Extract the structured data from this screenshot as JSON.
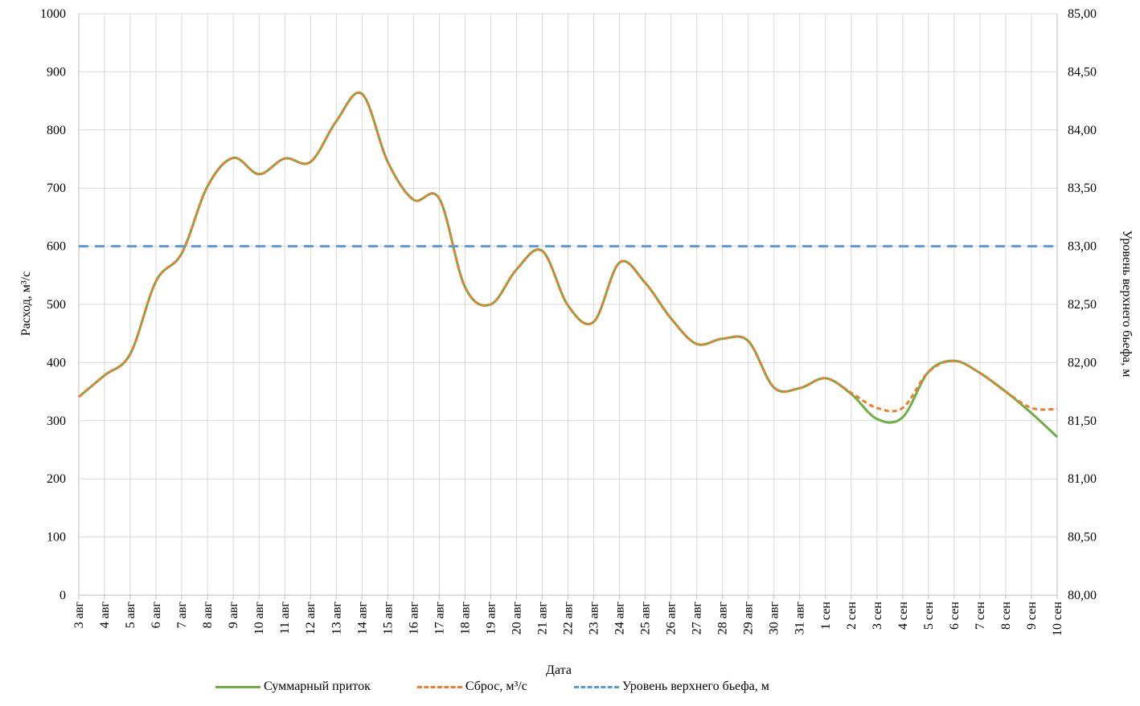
{
  "chart_data": {
    "type": "line",
    "xlabel": "Дата",
    "ylabel_left": "Расход, м³/с",
    "ylabel_right": "Уровень верхнего бьефа, м",
    "ylim_left": [
      0,
      1000
    ],
    "ylim_right": [
      80.0,
      85.0
    ],
    "yticks_left": [
      "0",
      "100",
      "200",
      "300",
      "400",
      "500",
      "600",
      "700",
      "800",
      "900",
      "1000"
    ],
    "yticks_right": [
      "80,00",
      "80,50",
      "81,00",
      "81,50",
      "82,00",
      "82,50",
      "83,00",
      "83,50",
      "84,00",
      "84,50",
      "85,00"
    ],
    "categories": [
      "3 авг",
      "4 авг",
      "5 авг",
      "6 авг",
      "7 авг",
      "8 авг",
      "9 авг",
      "10 авг",
      "11 авг",
      "12 авг",
      "13 авг",
      "14 авг",
      "15 авг",
      "16 авг",
      "17 авг",
      "18 авг",
      "19 авг",
      "20 авг",
      "21 авг",
      "22 авг",
      "23 авг",
      "24 авг",
      "25 авг",
      "26 авг",
      "27 авг",
      "28 авг",
      "29 авг",
      "30 авг",
      "31 авг",
      "1 сен",
      "2 сен",
      "3 сен",
      "4 сен",
      "5 сен",
      "6 сен",
      "7 сен",
      "8 сен",
      "9 сен",
      "10 сен"
    ],
    "grid": true,
    "legend_position": "bottom",
    "series": [
      {
        "name": "Суммарный приток",
        "axis": "left",
        "color": "#70ad47",
        "style": "solid",
        "values": [
          341,
          378,
          415,
          540,
          588,
          703,
          752,
          724,
          751,
          745,
          815,
          862,
          745,
          680,
          682,
          530,
          500,
          560,
          592,
          498,
          470,
          572,
          537,
          476,
          432,
          441,
          437,
          357,
          356,
          373,
          346,
          303,
          306,
          384,
          403,
          382,
          350,
          313,
          272
        ]
      },
      {
        "name": "Сброс, м³/с",
        "axis": "left",
        "color": "#ed7d31",
        "style": "dashed",
        "values": [
          341,
          378,
          415,
          540,
          588,
          703,
          752,
          724,
          751,
          745,
          815,
          862,
          745,
          680,
          682,
          530,
          500,
          560,
          592,
          498,
          470,
          572,
          537,
          476,
          432,
          441,
          437,
          357,
          356,
          373,
          348,
          322,
          322,
          384,
          403,
          382,
          350,
          322,
          320
        ]
      },
      {
        "name": "Уровень верхнего бьефа, м",
        "axis": "right",
        "color": "#5b9bd5",
        "style": "dashed",
        "values": [
          83.0,
          83.0,
          83.0,
          83.0,
          83.0,
          83.0,
          83.0,
          83.0,
          83.0,
          83.0,
          83.0,
          83.0,
          83.0,
          83.0,
          83.0,
          83.0,
          83.0,
          83.0,
          83.0,
          83.0,
          83.0,
          83.0,
          83.0,
          83.0,
          83.0,
          83.0,
          83.0,
          83.0,
          83.0,
          83.0,
          83.0,
          83.0,
          83.0,
          83.0,
          83.0,
          83.0,
          83.0,
          83.0,
          83.0
        ]
      }
    ]
  }
}
